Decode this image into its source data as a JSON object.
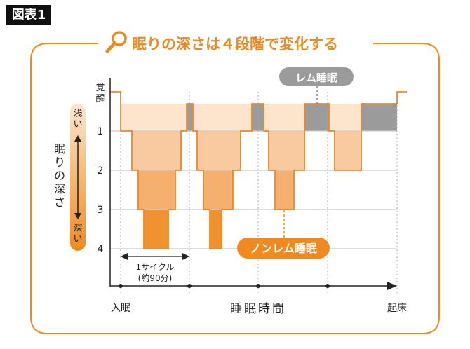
{
  "figure_tag": "図表1",
  "title": "眠りの深さは４段階で変化する",
  "title_icon": "magnifier-icon",
  "y_axis": {
    "label": "眠りの深さ",
    "wake_label": "覚醒",
    "levels": [
      "1",
      "2",
      "3",
      "4"
    ],
    "shallow_label": "浅い",
    "deep_label": "深い"
  },
  "x_axis": {
    "label": "睡眠時間",
    "start_label": "入眠",
    "end_label": "起床"
  },
  "cycle_annotation": {
    "line1": "1サイクル",
    "line2": "(約90分)"
  },
  "legend": {
    "rem_label": "レム睡眠",
    "nonrem_label": "ノンレム睡眠"
  },
  "colors": {
    "accent": "#ee8a1f",
    "rem": "#9b9b9b",
    "band0": "#fce4cd",
    "band1": "#f9ca9f",
    "band2": "#f5af6e",
    "band3": "#f0922f",
    "line": "#e9892a"
  }
}
